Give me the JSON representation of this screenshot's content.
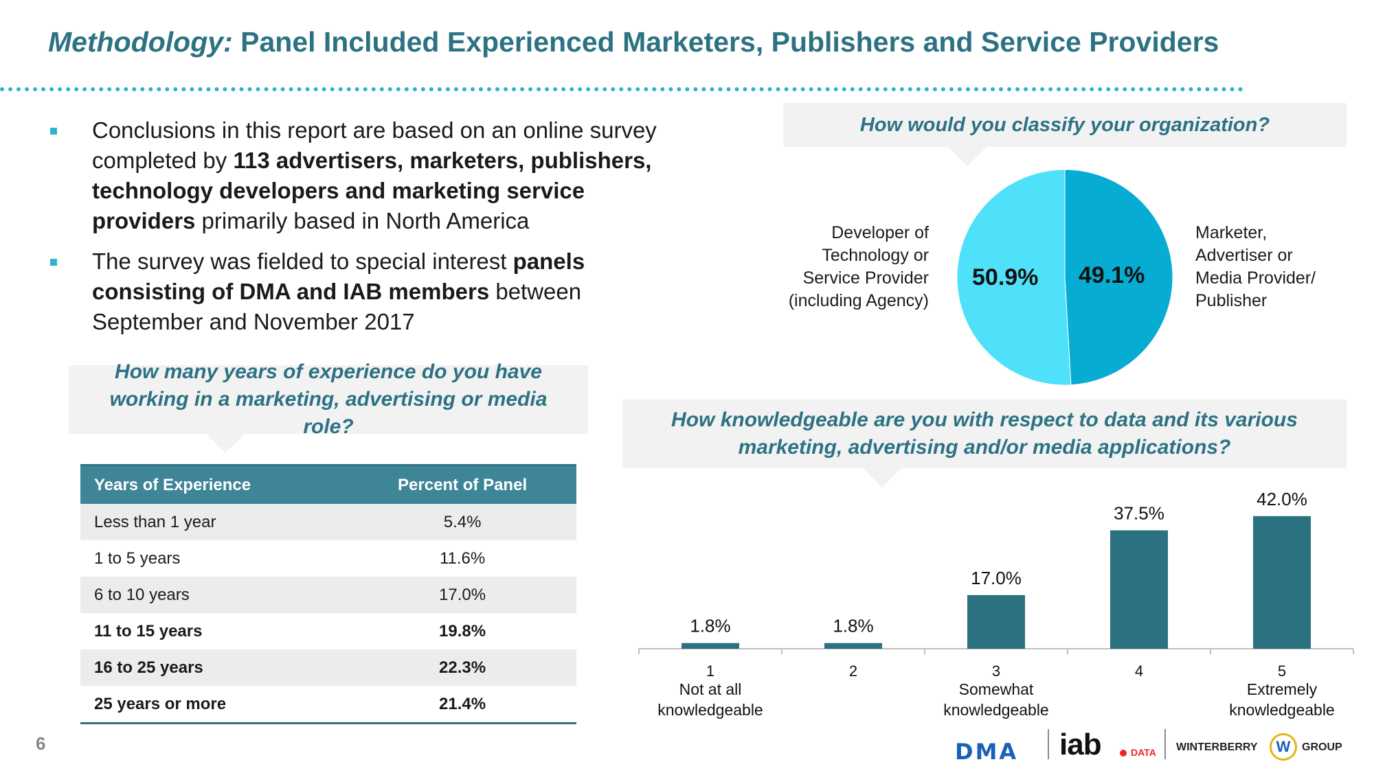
{
  "title": {
    "italic": "Methodology:",
    "main": " Panel Included Experienced Marketers, Publishers and Service Providers"
  },
  "bullets": [
    {
      "t1": "Conclusions in this report are based on an online survey completed by ",
      "b1": "113 advertisers, marketers, publishers, technology developers and marketing service providers",
      "t2": " primarily based in North America"
    },
    {
      "t1": "The survey was fielded to special interest ",
      "b1": "panels consisting of DMA and IAB members",
      "t2": " between September and November 2017"
    }
  ],
  "questions": {
    "classify": "How would you classify your organization?",
    "years": "How many years of experience do you have working in a marketing, advertising or media role?",
    "knowledge": "How knowledgeable are you with respect to data and its various marketing, advertising and/or media applications?"
  },
  "pie": {
    "left_label_lines": [
      "Developer of",
      "Technology or",
      "Service Provider",
      "(including Agency)"
    ],
    "right_label_lines": [
      "Marketer,",
      "Advertiser or",
      "Media Provider/",
      "Publisher"
    ]
  },
  "table": {
    "headers": [
      "Years of Experience",
      "Percent of Panel"
    ],
    "rows": [
      {
        "label": "Less than 1 year",
        "value": "5.4%"
      },
      {
        "label": "1 to 5 years",
        "value": "11.6%"
      },
      {
        "label": "6 to 10 years",
        "value": "17.0%"
      },
      {
        "label": "11 to 15 years",
        "value": "19.8%"
      },
      {
        "label": "16 to 25 years",
        "value": "22.3%"
      },
      {
        "label": "25 years or more",
        "value": "21.4%"
      }
    ]
  },
  "chart_data": [
    {
      "type": "pie",
      "title": "How would you classify your organization?",
      "slices": [
        {
          "label": "Marketer, Advertiser or Media Provider/ Publisher",
          "value": 49.1,
          "display": "49.1%",
          "color": "#06acd1"
        },
        {
          "label": "Developer of Technology or Service Provider (including Agency)",
          "value": 50.9,
          "display": "50.9%",
          "color": "#4fe0fa"
        }
      ]
    },
    {
      "type": "bar",
      "title": "How knowledgeable are you with respect to data and its various marketing, advertising and/or media applications?",
      "categories": [
        "1",
        "2",
        "3",
        "4",
        "5"
      ],
      "category_sublabels": [
        [
          "Not at all",
          "knowledgeable"
        ],
        [],
        [
          "Somewhat",
          "knowledgeable"
        ],
        [],
        [
          "Extremely",
          "knowledgeable"
        ]
      ],
      "values": [
        1.8,
        1.8,
        17.0,
        37.5,
        42.0
      ],
      "labels": [
        "1.8%",
        "1.8%",
        "17.0%",
        "37.5%",
        "42.0%"
      ],
      "ylim": [
        0,
        50
      ],
      "grid": false,
      "bar_color": "#2c7180"
    }
  ],
  "footer": {
    "page": "6",
    "dma": "DMA",
    "iab": "iab",
    "iab_data": "DATA",
    "wb_left": "WINTERBERRY",
    "wb_mark": "W",
    "wb_right": "GROUP"
  }
}
